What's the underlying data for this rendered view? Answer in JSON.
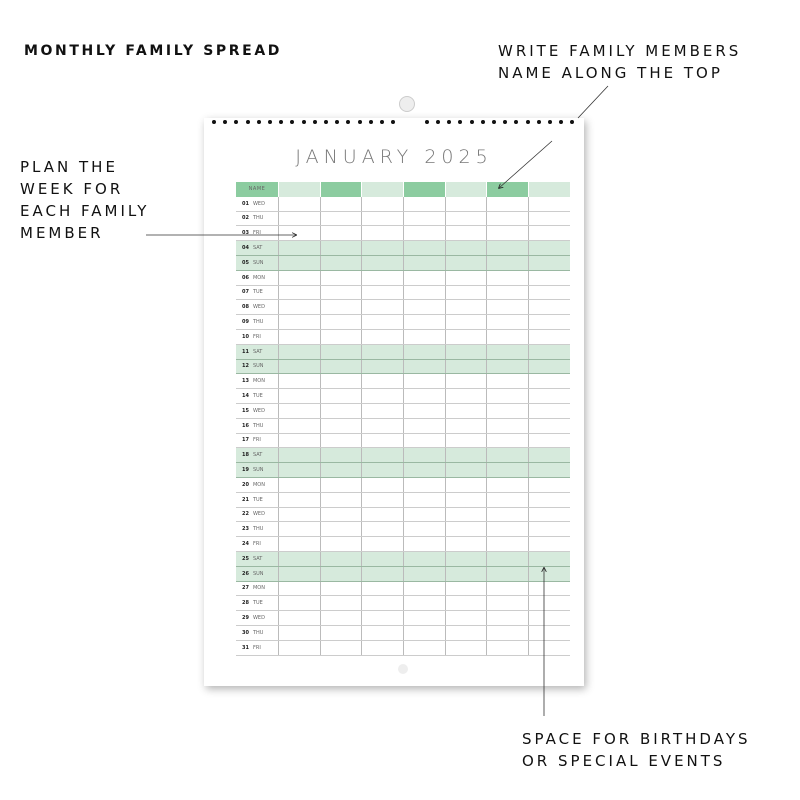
{
  "captions": {
    "title": "MONTHLY FAMILY SPREAD",
    "top_right": [
      "WRITE FAMILY MEMBERS",
      "NAME ALONG THE TOP"
    ],
    "left": [
      "PLAN THE",
      "WEEK FOR",
      "EACH FAMILY",
      "MEMBER"
    ],
    "bottom_right": [
      "SPACE FOR BIRTHDAYS",
      "OR SPECIAL EVENTS"
    ]
  },
  "calendar": {
    "month_title": "JANUARY 2025",
    "name_header": "NAME",
    "header_colors": {
      "dark": "#8ccca0",
      "light": "#d6eadc"
    },
    "member_columns": 7,
    "days": [
      [
        "01",
        "WED"
      ],
      [
        "02",
        "THU"
      ],
      [
        "03",
        "FRI"
      ],
      [
        "04",
        "SAT"
      ],
      [
        "05",
        "SUN"
      ],
      [
        "06",
        "MON"
      ],
      [
        "07",
        "TUE"
      ],
      [
        "08",
        "WED"
      ],
      [
        "09",
        "THU"
      ],
      [
        "10",
        "FRI"
      ],
      [
        "11",
        "SAT"
      ],
      [
        "12",
        "SUN"
      ],
      [
        "13",
        "MON"
      ],
      [
        "14",
        "TUE"
      ],
      [
        "15",
        "WED"
      ],
      [
        "16",
        "THU"
      ],
      [
        "17",
        "FRI"
      ],
      [
        "18",
        "SAT"
      ],
      [
        "19",
        "SUN"
      ],
      [
        "20",
        "MON"
      ],
      [
        "21",
        "TUE"
      ],
      [
        "22",
        "WED"
      ],
      [
        "23",
        "THU"
      ],
      [
        "24",
        "FRI"
      ],
      [
        "25",
        "SAT"
      ],
      [
        "26",
        "SUN"
      ],
      [
        "27",
        "MON"
      ],
      [
        "28",
        "TUE"
      ],
      [
        "29",
        "WED"
      ],
      [
        "30",
        "THU"
      ],
      [
        "31",
        "FRI"
      ]
    ]
  }
}
